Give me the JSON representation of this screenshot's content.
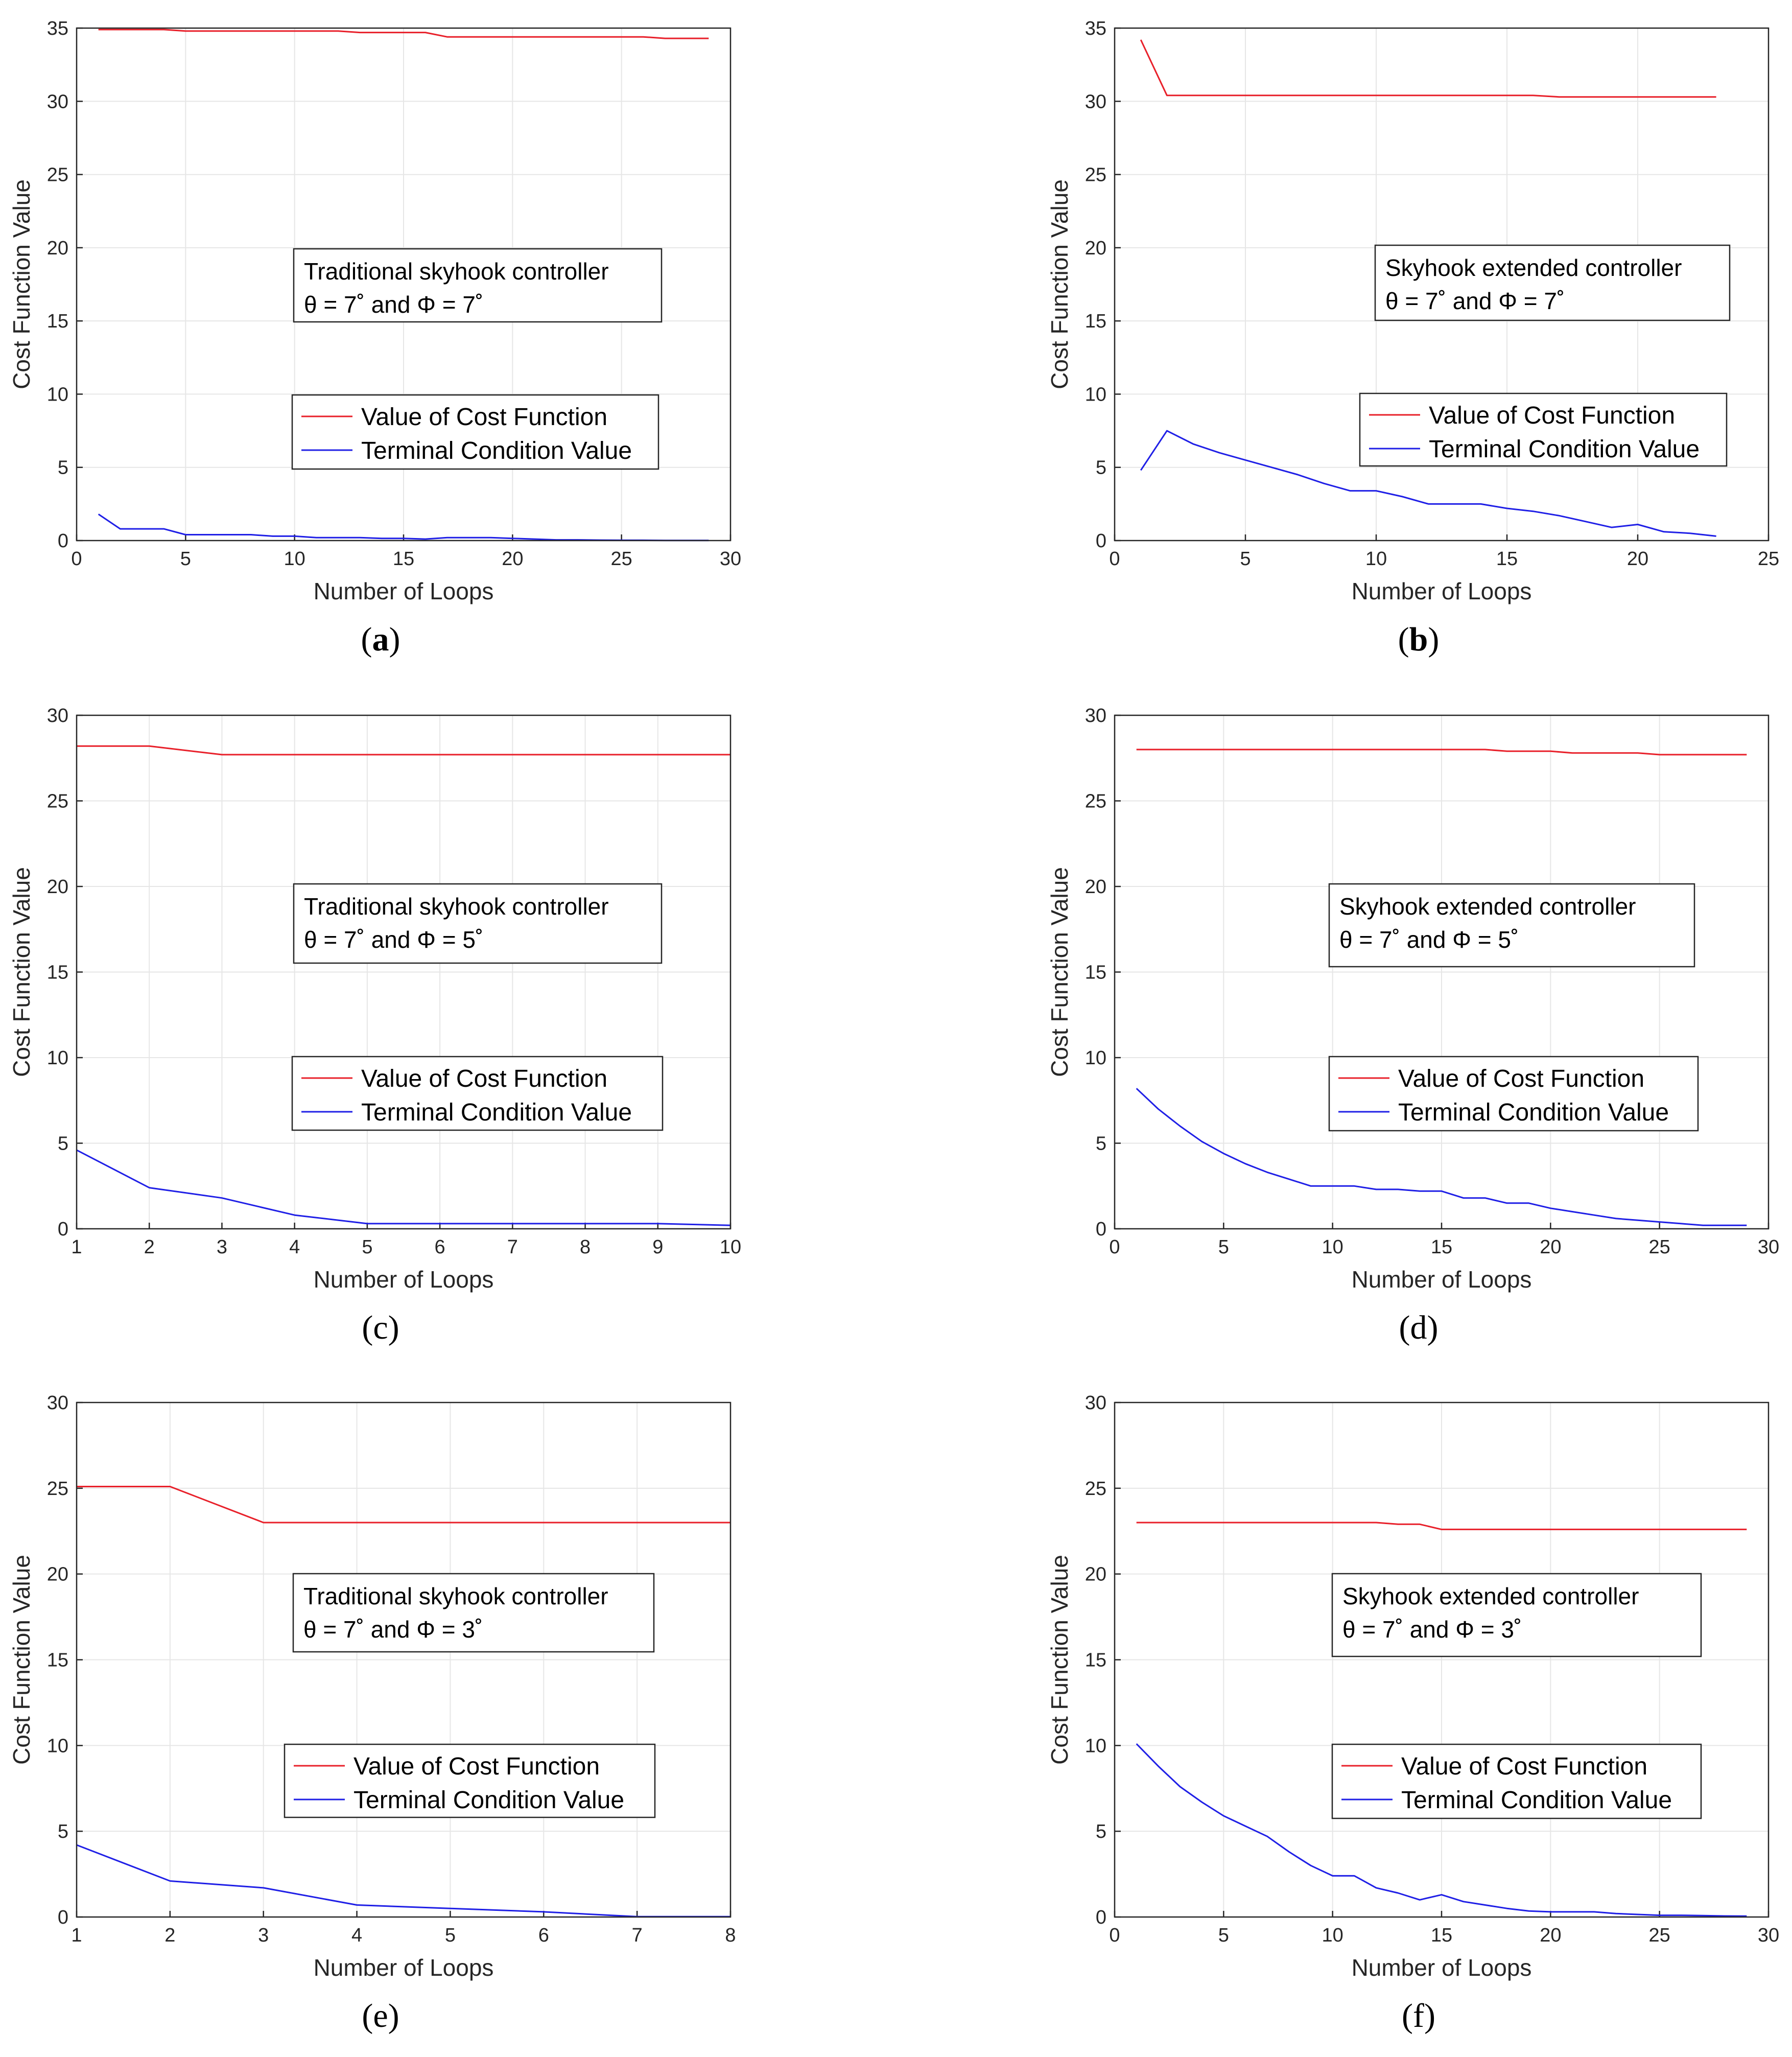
{
  "colors": {
    "cost": "#e8202a",
    "terminal": "#1f1fe6"
  },
  "chart_data": [
    {
      "id": "a",
      "type": "line",
      "caption": "a",
      "xlabel": "Number of Loops",
      "ylabel": "Cost Function Value",
      "xlim": [
        0,
        30
      ],
      "ylim": [
        0,
        35
      ],
      "xticks": [
        0,
        5,
        10,
        15,
        20,
        25,
        30
      ],
      "yticks": [
        0,
        5,
        10,
        15,
        20,
        25,
        30,
        35
      ],
      "annotation": [
        "Traditional skyhook controller",
        "θ = 7˚ and Φ = 7˚"
      ],
      "legend": [
        "Value of Cost Function",
        "Terminal Condition Value"
      ],
      "series": [
        {
          "name": "Value of Cost Function",
          "color_key": "cost",
          "x": [
            1,
            2,
            3,
            4,
            5,
            6,
            7,
            8,
            9,
            10,
            11,
            12,
            13,
            14,
            15,
            16,
            17,
            18,
            19,
            20,
            21,
            22,
            23,
            24,
            25,
            26,
            27,
            28,
            29
          ],
          "y": [
            34.9,
            34.9,
            34.9,
            34.9,
            34.8,
            34.8,
            34.8,
            34.8,
            34.8,
            34.8,
            34.8,
            34.8,
            34.7,
            34.7,
            34.7,
            34.7,
            34.4,
            34.4,
            34.4,
            34.4,
            34.4,
            34.4,
            34.4,
            34.4,
            34.4,
            34.4,
            34.3,
            34.3,
            34.3
          ]
        },
        {
          "name": "Terminal Condition Value",
          "color_key": "terminal",
          "x": [
            1,
            2,
            3,
            4,
            5,
            6,
            7,
            8,
            9,
            10,
            11,
            12,
            13,
            14,
            15,
            16,
            17,
            18,
            19,
            20,
            21,
            22,
            23,
            24,
            25,
            26,
            27,
            28,
            29
          ],
          "y": [
            1.8,
            0.8,
            0.8,
            0.8,
            0.4,
            0.4,
            0.4,
            0.4,
            0.3,
            0.3,
            0.2,
            0.2,
            0.2,
            0.15,
            0.15,
            0.1,
            0.2,
            0.2,
            0.2,
            0.15,
            0.1,
            0.05,
            0.05,
            0.03,
            0.02,
            0.02,
            0.01,
            0.01,
            0.01
          ]
        }
      ]
    },
    {
      "id": "b",
      "type": "line",
      "caption": "b",
      "xlabel": "Number of Loops",
      "ylabel": "Cost Function Value",
      "xlim": [
        0,
        25
      ],
      "ylim": [
        0,
        35
      ],
      "xticks": [
        0,
        5,
        10,
        15,
        20,
        25
      ],
      "yticks": [
        0,
        5,
        10,
        15,
        20,
        25,
        30,
        35
      ],
      "annotation": [
        "Skyhook extended controller",
        "θ = 7˚ and Φ = 7˚"
      ],
      "legend": [
        "Value of Cost Function",
        "Terminal Condition Value"
      ],
      "series": [
        {
          "name": "Value of Cost Function",
          "color_key": "cost",
          "x": [
            1,
            2,
            3,
            4,
            5,
            6,
            7,
            8,
            9,
            10,
            11,
            12,
            13,
            14,
            15,
            16,
            17,
            18,
            19,
            20,
            21,
            22,
            23
          ],
          "y": [
            34.2,
            30.4,
            30.4,
            30.4,
            30.4,
            30.4,
            30.4,
            30.4,
            30.4,
            30.4,
            30.4,
            30.4,
            30.4,
            30.4,
            30.4,
            30.4,
            30.3,
            30.3,
            30.3,
            30.3,
            30.3,
            30.3,
            30.3
          ]
        },
        {
          "name": "Terminal Condition Value",
          "color_key": "terminal",
          "x": [
            1,
            2,
            3,
            4,
            5,
            6,
            7,
            8,
            9,
            10,
            11,
            12,
            13,
            14,
            15,
            16,
            17,
            18,
            19,
            20,
            21,
            22,
            23
          ],
          "y": [
            4.8,
            7.5,
            6.6,
            6.0,
            5.5,
            5.0,
            4.5,
            3.9,
            3.4,
            3.4,
            3.0,
            2.5,
            2.5,
            2.5,
            2.2,
            2.0,
            1.7,
            1.3,
            0.9,
            1.1,
            0.6,
            0.5,
            0.3
          ]
        }
      ]
    },
    {
      "id": "c",
      "type": "line",
      "caption": "c",
      "xlabel": "Number of Loops",
      "ylabel": "Cost Function Value",
      "xlim": [
        1,
        10
      ],
      "ylim": [
        0,
        30
      ],
      "xticks": [
        1,
        2,
        3,
        4,
        5,
        6,
        7,
        8,
        9,
        10
      ],
      "yticks": [
        0,
        5,
        10,
        15,
        20,
        25,
        30
      ],
      "annotation": [
        "Traditional skyhook controller",
        "θ = 7˚ and Φ = 5˚"
      ],
      "legend": [
        "Value of Cost Function",
        "Terminal Condition Value"
      ],
      "series": [
        {
          "name": "Value of Cost Function",
          "color_key": "cost",
          "x": [
            1,
            2,
            3,
            4,
            5,
            6,
            7,
            8,
            9,
            10
          ],
          "y": [
            28.2,
            28.2,
            27.7,
            27.7,
            27.7,
            27.7,
            27.7,
            27.7,
            27.7,
            27.7
          ]
        },
        {
          "name": "Terminal Condition Value",
          "color_key": "terminal",
          "x": [
            1,
            2,
            3,
            4,
            5,
            6,
            7,
            8,
            9,
            10
          ],
          "y": [
            4.6,
            2.4,
            1.8,
            0.8,
            0.3,
            0.3,
            0.3,
            0.3,
            0.3,
            0.2
          ]
        }
      ]
    },
    {
      "id": "d",
      "type": "line",
      "caption": "d",
      "xlabel": "Number of Loops",
      "ylabel": "Cost Function Value",
      "xlim": [
        0,
        30
      ],
      "ylim": [
        0,
        30
      ],
      "xticks": [
        0,
        5,
        10,
        15,
        20,
        25,
        30
      ],
      "yticks": [
        0,
        5,
        10,
        15,
        20,
        25,
        30
      ],
      "annotation": [
        "Skyhook extended controller",
        "θ = 7˚ and Φ = 5˚"
      ],
      "legend": [
        "Value of Cost Function",
        "Terminal Condition Value"
      ],
      "series": [
        {
          "name": "Value of Cost Function",
          "color_key": "cost",
          "x": [
            1,
            2,
            3,
            4,
            5,
            6,
            7,
            8,
            9,
            10,
            11,
            12,
            13,
            14,
            15,
            16,
            17,
            18,
            19,
            20,
            21,
            22,
            23,
            24,
            25,
            26,
            27,
            28,
            29
          ],
          "y": [
            28.0,
            28.0,
            28.0,
            28.0,
            28.0,
            28.0,
            28.0,
            28.0,
            28.0,
            28.0,
            28.0,
            28.0,
            28.0,
            28.0,
            28.0,
            28.0,
            28.0,
            27.9,
            27.9,
            27.9,
            27.8,
            27.8,
            27.8,
            27.8,
            27.7,
            27.7,
            27.7,
            27.7,
            27.7
          ]
        },
        {
          "name": "Terminal Condition Value",
          "color_key": "terminal",
          "x": [
            1,
            2,
            3,
            4,
            5,
            6,
            7,
            8,
            9,
            10,
            11,
            12,
            13,
            14,
            15,
            16,
            17,
            18,
            19,
            20,
            21,
            22,
            23,
            24,
            25,
            26,
            27,
            28,
            29
          ],
          "y": [
            8.2,
            7.0,
            6.0,
            5.1,
            4.4,
            3.8,
            3.3,
            2.9,
            2.5,
            2.5,
            2.5,
            2.3,
            2.3,
            2.2,
            2.2,
            1.8,
            1.8,
            1.5,
            1.5,
            1.2,
            1.0,
            0.8,
            0.6,
            0.5,
            0.4,
            0.3,
            0.2,
            0.2,
            0.2
          ]
        }
      ]
    },
    {
      "id": "e",
      "type": "line",
      "caption": "e",
      "xlabel": "Number of Loops",
      "ylabel": "Cost Function Value",
      "xlim": [
        1,
        8
      ],
      "ylim": [
        0,
        30
      ],
      "xticks": [
        1,
        2,
        3,
        4,
        5,
        6,
        7,
        8
      ],
      "yticks": [
        0,
        5,
        10,
        15,
        20,
        25,
        30
      ],
      "annotation": [
        "Traditional skyhook controller",
        "θ = 7˚ and Φ = 3˚"
      ],
      "legend": [
        "Value of Cost Function",
        "Terminal Condition Value"
      ],
      "series": [
        {
          "name": "Value of Cost Function",
          "color_key": "cost",
          "x": [
            1,
            2,
            3,
            4,
            5,
            6,
            7,
            8
          ],
          "y": [
            25.1,
            25.1,
            23.0,
            23.0,
            23.0,
            23.0,
            23.0,
            23.0
          ]
        },
        {
          "name": "Terminal Condition Value",
          "color_key": "terminal",
          "x": [
            1,
            2,
            3,
            4,
            5,
            6,
            7,
            8
          ],
          "y": [
            4.2,
            2.1,
            1.7,
            0.7,
            0.5,
            0.3,
            0.02,
            0.02
          ]
        }
      ]
    },
    {
      "id": "f",
      "type": "line",
      "caption": "f",
      "xlabel": "Number of Loops",
      "ylabel": "Cost Function Value",
      "xlim": [
        0,
        30
      ],
      "ylim": [
        0,
        30
      ],
      "xticks": [
        0,
        5,
        10,
        15,
        20,
        25,
        30
      ],
      "yticks": [
        0,
        5,
        10,
        15,
        20,
        25,
        30
      ],
      "annotation": [
        "Skyhook extended controller",
        "θ = 7˚ and Φ = 3˚"
      ],
      "legend": [
        "Value of Cost Function",
        "Terminal Condition Value"
      ],
      "series": [
        {
          "name": "Value of Cost Function",
          "color_key": "cost",
          "x": [
            1,
            2,
            3,
            4,
            5,
            6,
            7,
            8,
            9,
            10,
            11,
            12,
            13,
            14,
            15,
            16,
            17,
            18,
            19,
            20,
            21,
            22,
            23,
            24,
            25,
            26,
            27,
            28,
            29
          ],
          "y": [
            23.0,
            23.0,
            23.0,
            23.0,
            23.0,
            23.0,
            23.0,
            23.0,
            23.0,
            23.0,
            23.0,
            23.0,
            22.9,
            22.9,
            22.6,
            22.6,
            22.6,
            22.6,
            22.6,
            22.6,
            22.6,
            22.6,
            22.6,
            22.6,
            22.6,
            22.6,
            22.6,
            22.6,
            22.6
          ]
        },
        {
          "name": "Terminal Condition Value",
          "color_key": "terminal",
          "x": [
            1,
            2,
            3,
            4,
            5,
            6,
            7,
            8,
            9,
            10,
            11,
            12,
            13,
            14,
            15,
            16,
            17,
            18,
            19,
            20,
            21,
            22,
            23,
            24,
            25,
            26,
            27,
            28,
            29
          ],
          "y": [
            10.1,
            8.8,
            7.6,
            6.7,
            5.9,
            5.3,
            4.7,
            3.8,
            3.0,
            2.4,
            2.4,
            1.7,
            1.4,
            1.0,
            1.3,
            0.9,
            0.7,
            0.5,
            0.35,
            0.3,
            0.3,
            0.3,
            0.2,
            0.15,
            0.1,
            0.1,
            0.08,
            0.06,
            0.05
          ]
        }
      ]
    }
  ]
}
